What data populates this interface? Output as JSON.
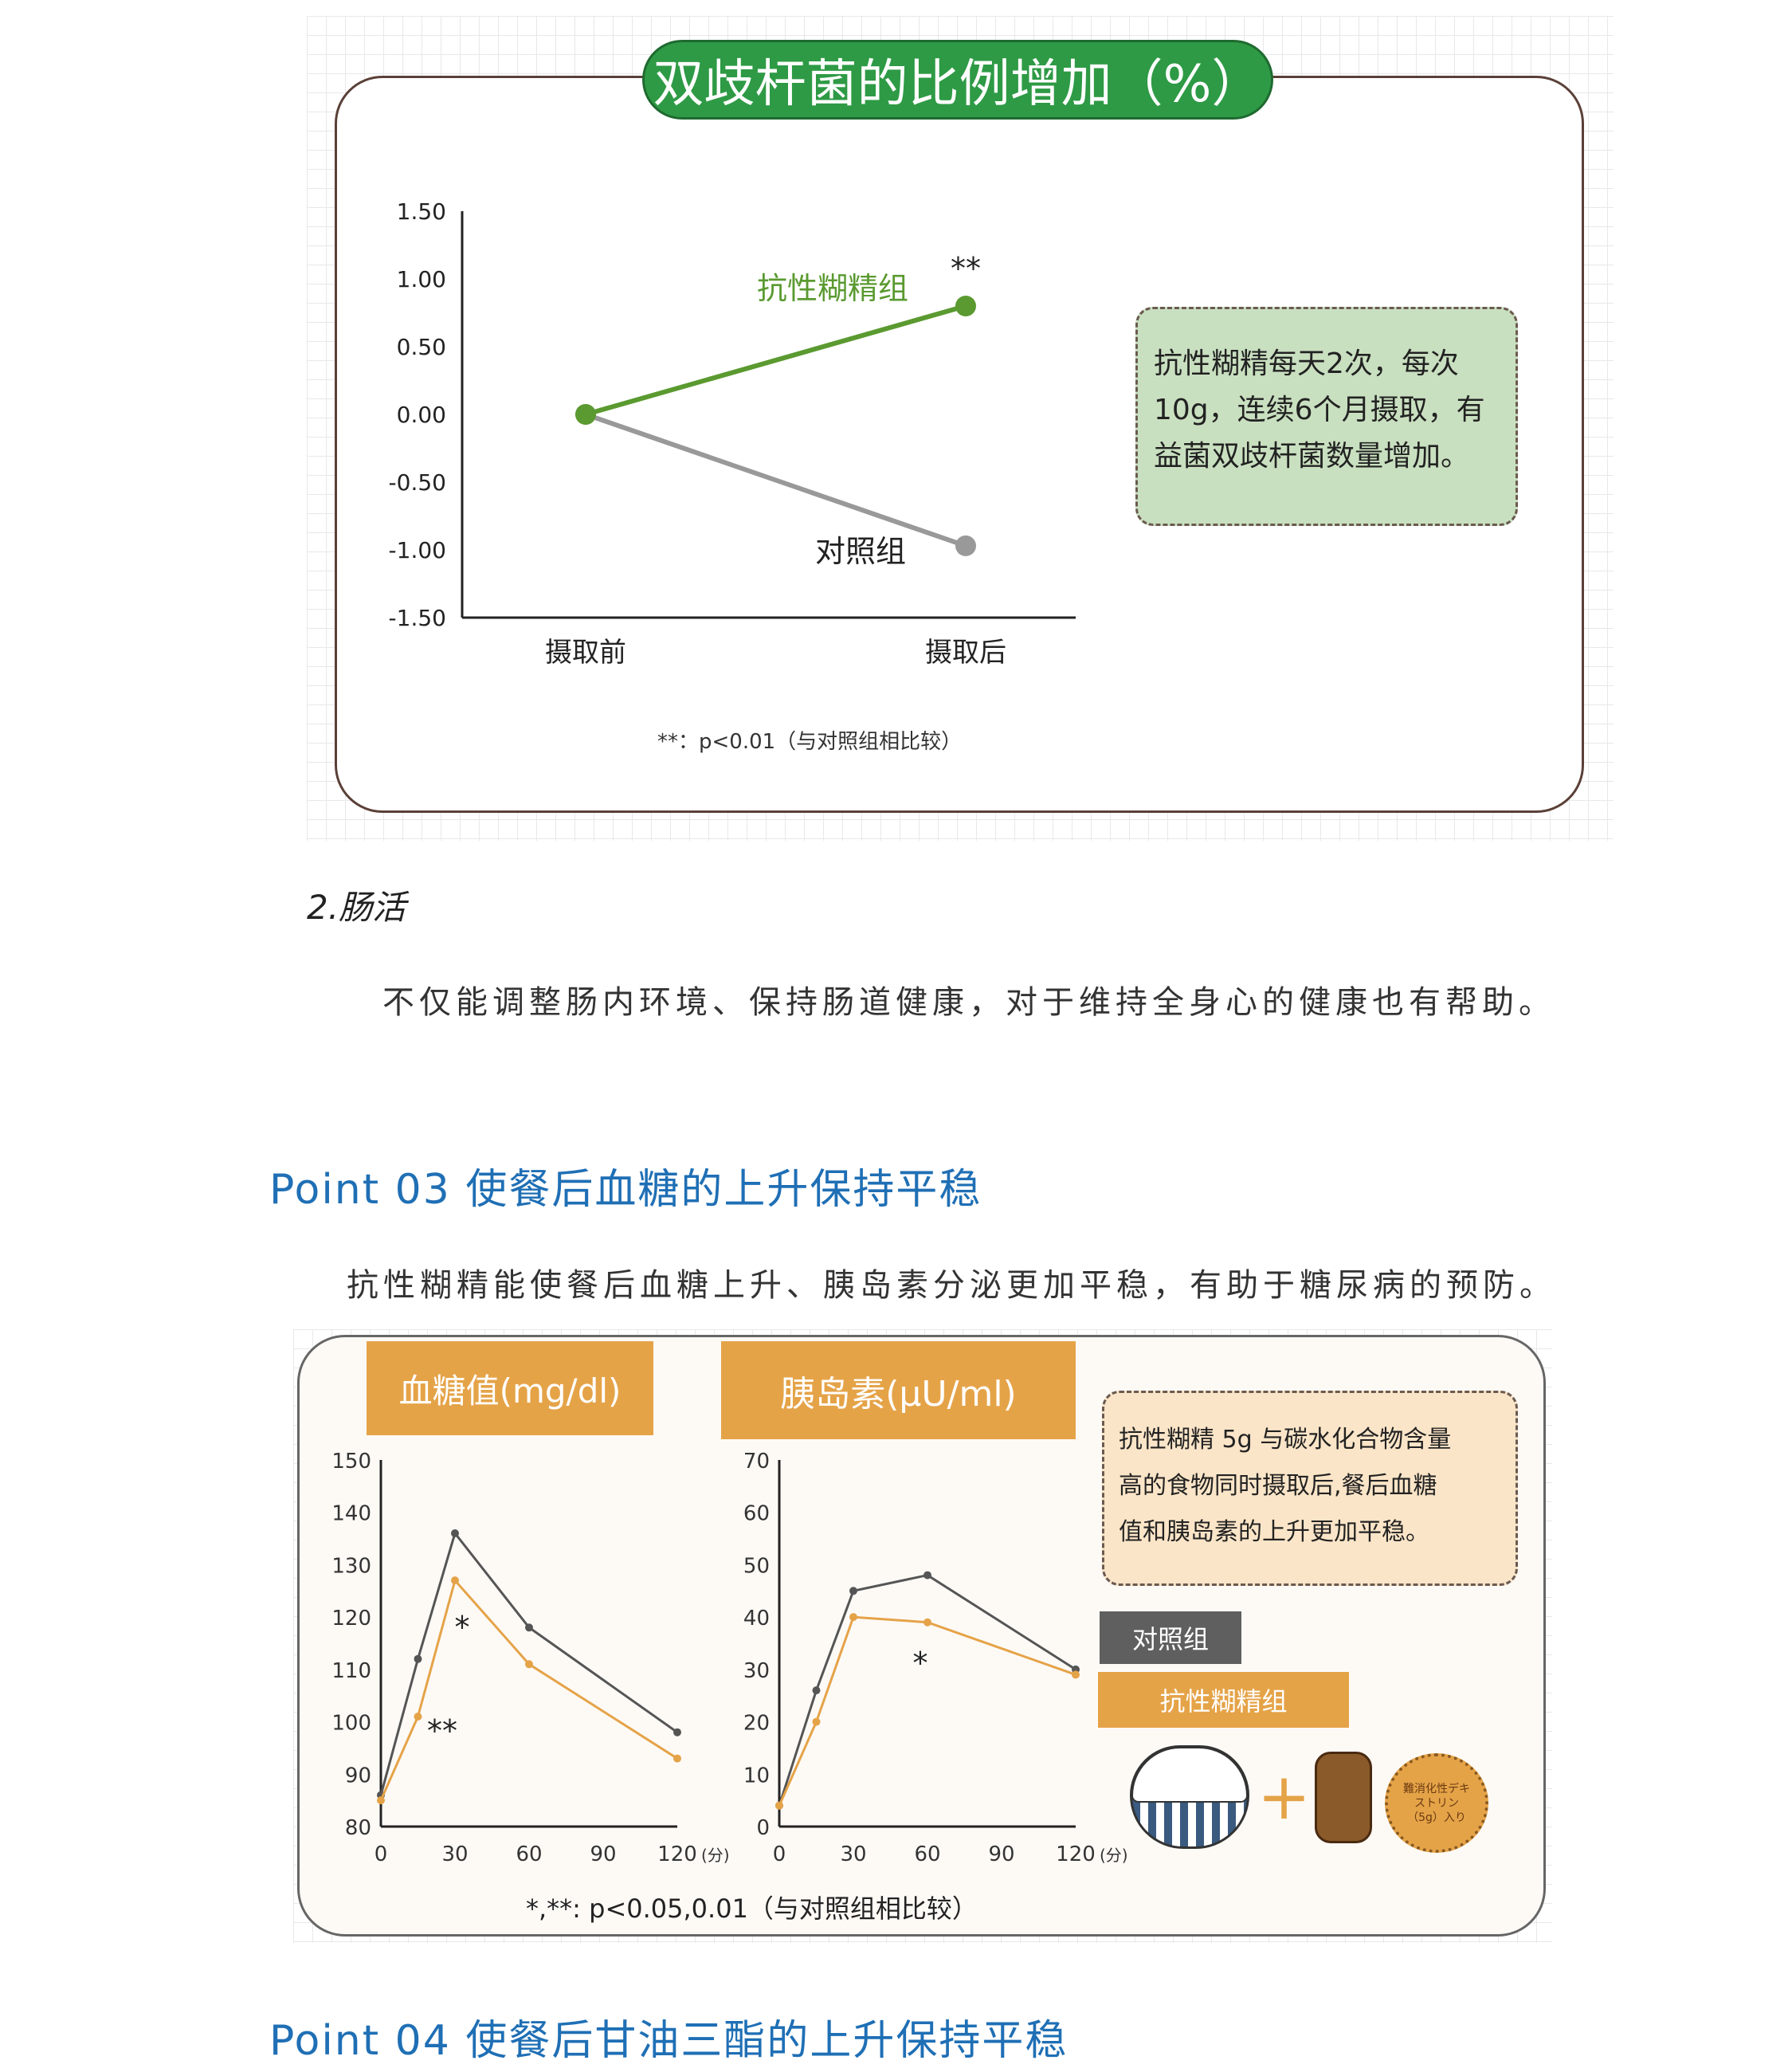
{
  "chart_data": [
    {
      "type": "line",
      "title": "双歧杆菌的比例增加（%）",
      "categories": [
        "摄取前",
        "摄取后"
      ],
      "ylim": [
        -1.5,
        1.5
      ],
      "yticks": [
        "1.50",
        "1.00",
        "0.50",
        "0.00",
        "-0.50",
        "-1.00",
        "-1.50"
      ],
      "series": [
        {
          "name": "抗性糊精组",
          "values": [
            0,
            0.8
          ],
          "color": "#5a9a30"
        },
        {
          "name": "对照组",
          "values": [
            0,
            -0.97
          ],
          "color": "#999999"
        }
      ],
      "significance": "**",
      "footnote": "**：p<0.01（与对照组相比较）"
    },
    {
      "type": "line",
      "title": "血糖值(mg/dl)",
      "x": [
        0,
        15,
        30,
        60,
        120
      ],
      "xticks": [
        "0",
        "30",
        "60",
        "90",
        "120"
      ],
      "xunit": "(分)",
      "ylim": [
        80,
        150
      ],
      "yticks": [
        "150",
        "140",
        "130",
        "120",
        "110",
        "100",
        "90",
        "80"
      ],
      "series": [
        {
          "name": "对照组",
          "values": [
            86,
            112,
            136,
            118,
            98
          ],
          "color": "#555555"
        },
        {
          "name": "抗性糊精组",
          "values": [
            85,
            101,
            127,
            111,
            93
          ],
          "color": "#e5a348"
        }
      ],
      "annotations": [
        "*",
        "**"
      ]
    },
    {
      "type": "line",
      "title": "胰岛素(μU/ml)",
      "x": [
        0,
        15,
        30,
        60,
        120
      ],
      "xticks": [
        "0",
        "30",
        "60",
        "90",
        "120"
      ],
      "xunit": "(分)",
      "ylim": [
        0,
        70
      ],
      "yticks": [
        "70",
        "60",
        "50",
        "40",
        "30",
        "20",
        "10",
        "0"
      ],
      "series": [
        {
          "name": "对照组",
          "values": [
            4,
            26,
            45,
            48,
            30
          ],
          "color": "#555555"
        },
        {
          "name": "抗性糊精组",
          "values": [
            4,
            20,
            40,
            39,
            29
          ],
          "color": "#e5a348"
        }
      ],
      "annotations": [
        "*"
      ]
    }
  ],
  "chart1": {
    "callout": [
      "抗性糊精每天2次，每次",
      "10g，连续6个月摄取，有",
      "益菌双歧杆菌数量增加。"
    ]
  },
  "section2": {
    "heading": "2.肠活",
    "text": "不仅能调整肠内环境、保持肠道健康，对于维持全身心的健康也有帮助。"
  },
  "point03": {
    "heading": "Point 03 使餐后血糖的上升保持平稳",
    "text": "抗性糊精能使餐后血糖上升、胰岛素分泌更加平稳，有助于糖尿病的预防。"
  },
  "chart2": {
    "callout": [
      "抗性糊精 5g 与碳水化合物含量",
      "高的食物同时摄取后,餐后血糖",
      "值和胰岛素的上升更加平稳。"
    ],
    "legend_control": "对照组",
    "legend_resistant": "抗性糊精组",
    "footnote": "*,**: p<0.05,0.01（与对照组相比较）",
    "cookie_text": "難消化性デキストリン（5g）入り"
  },
  "point04": {
    "heading": "Point 04 使餐后甘油三酯的上升保持平稳"
  }
}
